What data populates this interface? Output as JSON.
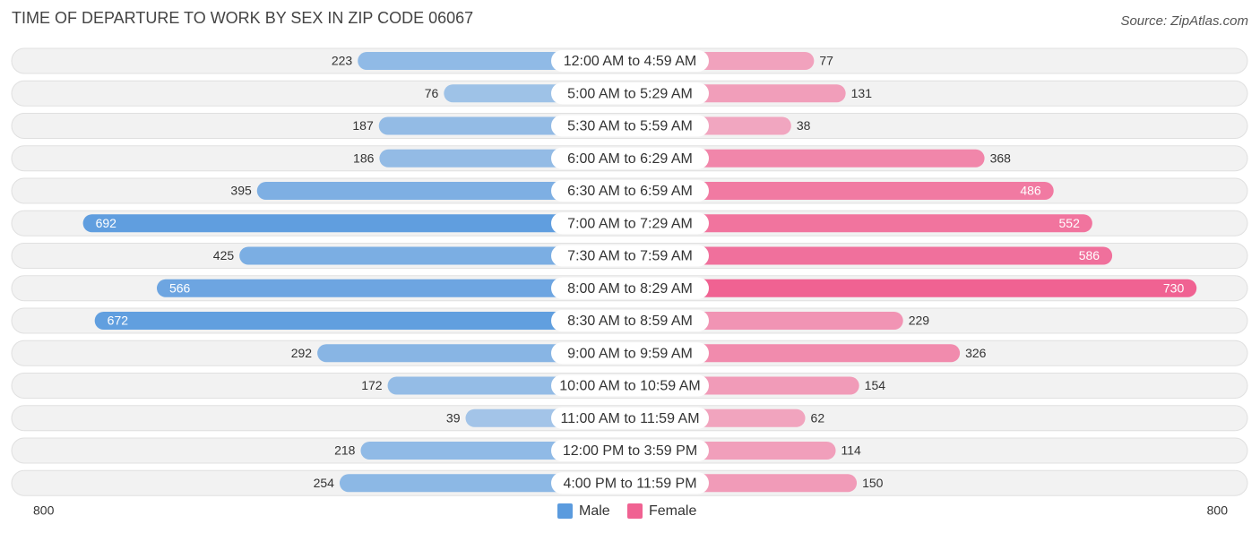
{
  "chart_data": {
    "type": "butterfly-bar",
    "title": "TIME OF DEPARTURE TO WORK BY SEX IN ZIP CODE 06067",
    "source": "Source: ZipAtlas.com",
    "categories": [
      "12:00 AM to 4:59 AM",
      "5:00 AM to 5:29 AM",
      "5:30 AM to 5:59 AM",
      "6:00 AM to 6:29 AM",
      "6:30 AM to 6:59 AM",
      "7:00 AM to 7:29 AM",
      "7:30 AM to 7:59 AM",
      "8:00 AM to 8:29 AM",
      "8:30 AM to 8:59 AM",
      "9:00 AM to 9:59 AM",
      "10:00 AM to 10:59 AM",
      "11:00 AM to 11:59 AM",
      "12:00 PM to 3:59 PM",
      "4:00 PM to 11:59 PM"
    ],
    "series": [
      {
        "name": "Male",
        "color": "#5b9bde",
        "values": [
          223,
          76,
          187,
          186,
          395,
          692,
          425,
          566,
          672,
          292,
          172,
          39,
          218,
          254
        ]
      },
      {
        "name": "Female",
        "color": "#f06292",
        "values": [
          77,
          131,
          38,
          368,
          486,
          552,
          586,
          730,
          229,
          326,
          154,
          62,
          114,
          150
        ]
      }
    ],
    "xlim": [
      -800,
      800
    ],
    "xticks": [
      {
        "value": -800,
        "label": "800"
      },
      800
    ]
  }
}
